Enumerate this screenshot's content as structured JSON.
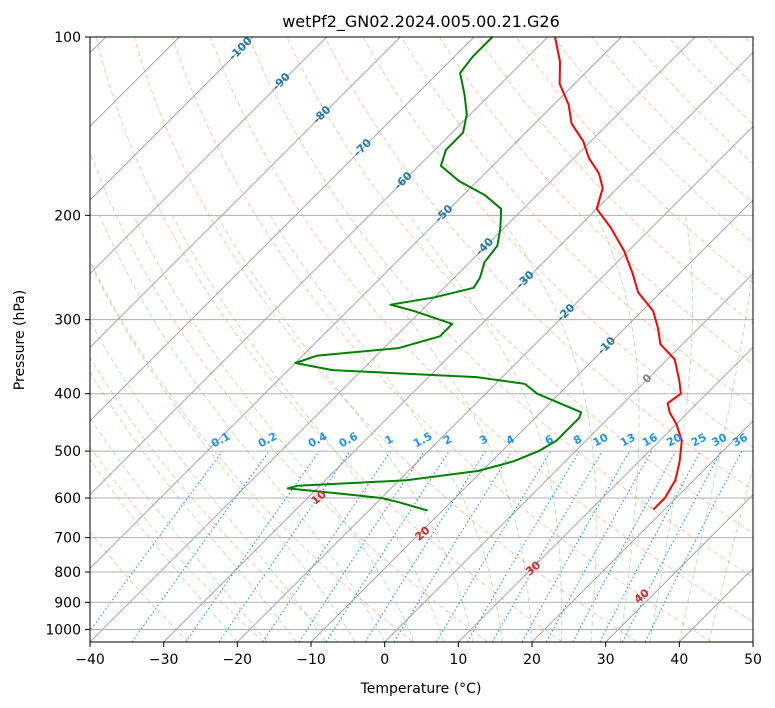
{
  "chart_data": {
    "type": "line",
    "subtype": "skew-t log-p",
    "title": "wetPf2_GN02.2024.005.00.21.G26",
    "xlabel": "Temperature (°C)",
    "ylabel": "Pressure (hPa)",
    "xlim": [
      -40,
      50
    ],
    "ylim": [
      1050,
      100
    ],
    "y_scale": "log",
    "x_ticks": [
      -40,
      -30,
      -20,
      -10,
      0,
      10,
      20,
      30,
      40,
      50
    ],
    "y_ticks": [
      100,
      200,
      300,
      400,
      500,
      600,
      700,
      800,
      900,
      1000
    ],
    "grid": true,
    "isotherm_labels": [
      "-100",
      "-90",
      "-80",
      "-70",
      "-60",
      "-50",
      "-40",
      "-30",
      "-20",
      "-10",
      "0"
    ],
    "mixing_ratio_labels": [
      "0.1",
      "0.2",
      "0.4",
      "0.6",
      "1",
      "1.5",
      "2",
      "3",
      "4",
      "6",
      "8",
      "10",
      "13",
      "16",
      "20",
      "25",
      "30",
      "36"
    ],
    "dry_adiabat_labels": [
      "10",
      "20",
      "30",
      "40"
    ],
    "colors": {
      "temperature": "#ff0000",
      "dewpoint": "#008000",
      "isotherm_label": "#1f77b4",
      "mixing_ratio": "#1e90ff",
      "dry_adiabat": "#ff7f50",
      "moist_adiabat": "#2ca02c",
      "dry_adiabat_label": "#d62728",
      "zero_isotherm_label": "#808080"
    },
    "series": [
      {
        "name": "Temperature",
        "points": [
          [
            628,
            18.5
          ],
          [
            600,
            18.5
          ],
          [
            560,
            17.5
          ],
          [
            520,
            15.5
          ],
          [
            480,
            13.0
          ],
          [
            450,
            10.0
          ],
          [
            430,
            7.5
          ],
          [
            415,
            6.0
          ],
          [
            400,
            6.5
          ],
          [
            380,
            4.5
          ],
          [
            350,
            1.0
          ],
          [
            330,
            -3.0
          ],
          [
            310,
            -5.5
          ],
          [
            290,
            -8.5
          ],
          [
            270,
            -13.0
          ],
          [
            250,
            -16.5
          ],
          [
            230,
            -20.5
          ],
          [
            210,
            -25.5
          ],
          [
            195,
            -30.0
          ],
          [
            180,
            -32.0
          ],
          [
            170,
            -34.5
          ],
          [
            160,
            -38.0
          ],
          [
            150,
            -41.0
          ],
          [
            140,
            -45.0
          ],
          [
            130,
            -48.0
          ],
          [
            120,
            -52.0
          ],
          [
            110,
            -55.0
          ],
          [
            100,
            -59.0
          ]
        ]
      },
      {
        "name": "Dewpoint",
        "points": [
          [
            630,
            -12.0
          ],
          [
            610,
            -17.0
          ],
          [
            600,
            -20.0
          ],
          [
            590,
            -26.0
          ],
          [
            578,
            -34.0
          ],
          [
            572,
            -33.0
          ],
          [
            560,
            -19.0
          ],
          [
            540,
            -10.5
          ],
          [
            520,
            -7.0
          ],
          [
            500,
            -5.0
          ],
          [
            480,
            -4.0
          ],
          [
            460,
            -4.0
          ],
          [
            440,
            -4.0
          ],
          [
            430,
            -4.5
          ],
          [
            400,
            -13.0
          ],
          [
            385,
            -16.0
          ],
          [
            375,
            -23.5
          ],
          [
            365,
            -44.0
          ],
          [
            355,
            -50.0
          ],
          [
            345,
            -48.0
          ],
          [
            335,
            -38.0
          ],
          [
            320,
            -34.0
          ],
          [
            305,
            -34.0
          ],
          [
            290,
            -41.0
          ],
          [
            283,
            -45.0
          ],
          [
            275,
            -40.0
          ],
          [
            265,
            -36.0
          ],
          [
            255,
            -36.5
          ],
          [
            240,
            -38.0
          ],
          [
            225,
            -38.5
          ],
          [
            210,
            -40.5
          ],
          [
            195,
            -43.0
          ],
          [
            185,
            -47.0
          ],
          [
            175,
            -52.5
          ],
          [
            165,
            -57.0
          ],
          [
            155,
            -58.5
          ],
          [
            145,
            -58.5
          ],
          [
            135,
            -60.5
          ],
          [
            125,
            -63.5
          ],
          [
            115,
            -67.0
          ],
          [
            108,
            -67.5
          ],
          [
            100,
            -67.5
          ]
        ]
      }
    ]
  }
}
